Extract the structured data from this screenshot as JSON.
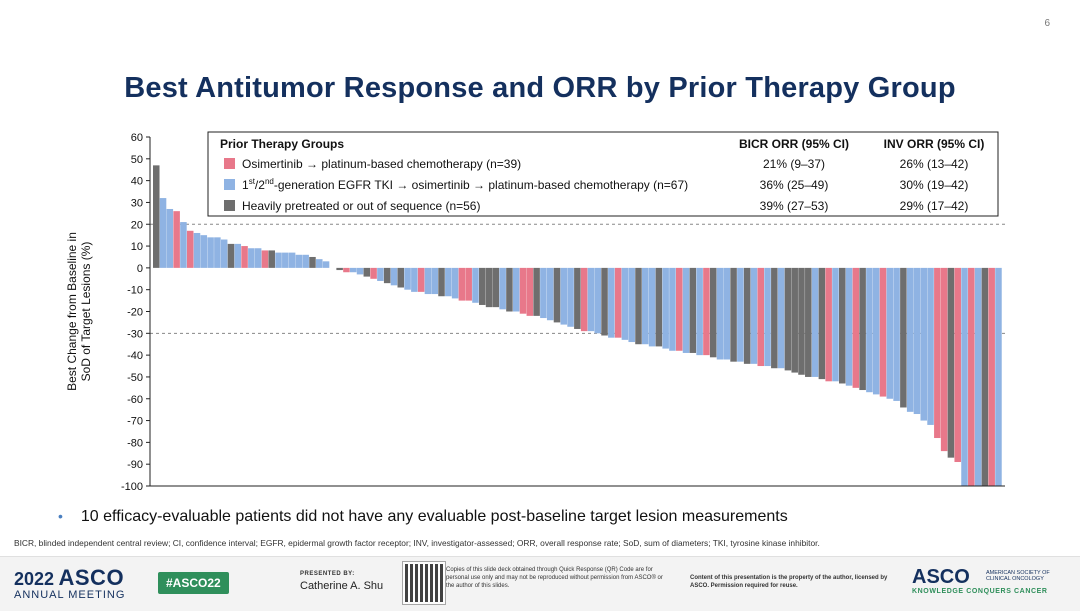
{
  "slide": {
    "page_number": "6",
    "title": "Best Antitumor Response and ORR by Prior Therapy Group",
    "bullet": "10 efficacy-evaluable patients did not have any evaluable post-baseline target lesion measurements",
    "footnote": "BICR, blinded independent central review; CI, confidence interval; EGFR, epidermal growth factor receptor; INV, investigator-assessed; ORR, overall response rate; SoD, sum of diameters; TKI, tyrosine kinase inhibitor."
  },
  "footer": {
    "meeting_year": "2022",
    "meeting_brand": "ASCO",
    "meeting_sub": "ANNUAL MEETING",
    "hashtag": "#ASCO22",
    "presented_by_label": "PRESENTED BY:",
    "presenter": "Catherine A. Shu",
    "qr_note": "Copies of this slide deck obtained through Quick Response (QR) Code are for personal use only and may not be reproduced without permission from ASCO® or the author of this slides.",
    "copyright": "Content of this presentation is the property of the author, licensed by ASCO. Permission required for reuse.",
    "logo_text": "ASCO",
    "logo_society": "AMERICAN SOCIETY OF CLINICAL ONCOLOGY",
    "logo_tagline": "KNOWLEDGE CONQUERS CANCER"
  },
  "chart_data": {
    "type": "bar",
    "ylabel_line1": "Best Change from Baseline in",
    "ylabel_line2": "SoD of Target Lesions (%)",
    "ylim": [
      -100,
      60
    ],
    "yticks": [
      60,
      50,
      40,
      30,
      20,
      10,
      0,
      -10,
      -20,
      -30,
      -40,
      -50,
      -60,
      -70,
      -80,
      -90,
      -100
    ],
    "reference_lines": [
      20,
      -30
    ],
    "colors": {
      "pink": "#e8788a",
      "blue": "#8fb3e3",
      "gray": "#6e6e6e"
    },
    "legend": {
      "header": "Prior Therapy Groups",
      "col_bicr": "BICR ORR (95% CI)",
      "col_inv": "INV ORR (95% CI)",
      "rows": [
        {
          "key": "pink",
          "label": "Osimertinib → platinum-based chemotherapy (n=39)",
          "bicr": "21% (9–37)",
          "inv": "26% (13–42)"
        },
        {
          "key": "blue",
          "label_main": "1",
          "label_sup1": "st",
          "label_mid": "/2",
          "label_sup2": "nd",
          "label_rest": "-generation EGFR TKI → osimertinib → platinum-based chemotherapy (n=67)",
          "bicr": "36% (25–49)",
          "inv": "30% (19–42)"
        },
        {
          "key": "gray",
          "label": "Heavily pretreated or out of sequence (n=56)",
          "bicr": "39% (27–53)",
          "inv": "29% (17–42)"
        }
      ]
    },
    "bars": [
      {
        "v": 47,
        "g": "gray"
      },
      {
        "v": 32,
        "g": "blue"
      },
      {
        "v": 27,
        "g": "blue"
      },
      {
        "v": 26,
        "g": "pink"
      },
      {
        "v": 21,
        "g": "blue"
      },
      {
        "v": 17,
        "g": "pink"
      },
      {
        "v": 16,
        "g": "blue"
      },
      {
        "v": 15,
        "g": "blue"
      },
      {
        "v": 14,
        "g": "blue"
      },
      {
        "v": 14,
        "g": "blue"
      },
      {
        "v": 13,
        "g": "blue"
      },
      {
        "v": 11,
        "g": "gray"
      },
      {
        "v": 11,
        "g": "blue"
      },
      {
        "v": 10,
        "g": "pink"
      },
      {
        "v": 9,
        "g": "blue"
      },
      {
        "v": 9,
        "g": "blue"
      },
      {
        "v": 8,
        "g": "pink"
      },
      {
        "v": 8,
        "g": "gray"
      },
      {
        "v": 7,
        "g": "blue"
      },
      {
        "v": 7,
        "g": "blue"
      },
      {
        "v": 7,
        "g": "blue"
      },
      {
        "v": 6,
        "g": "blue"
      },
      {
        "v": 6,
        "g": "blue"
      },
      {
        "v": 5,
        "g": "gray"
      },
      {
        "v": 4,
        "g": "blue"
      },
      {
        "v": 3,
        "g": "blue"
      },
      {
        "v": 0,
        "g": "blue"
      },
      {
        "v": -1,
        "g": "gray"
      },
      {
        "v": -2,
        "g": "pink"
      },
      {
        "v": -2,
        "g": "blue"
      },
      {
        "v": -3,
        "g": "blue"
      },
      {
        "v": -4,
        "g": "gray"
      },
      {
        "v": -5,
        "g": "pink"
      },
      {
        "v": -6,
        "g": "blue"
      },
      {
        "v": -7,
        "g": "gray"
      },
      {
        "v": -8,
        "g": "blue"
      },
      {
        "v": -9,
        "g": "gray"
      },
      {
        "v": -10,
        "g": "blue"
      },
      {
        "v": -11,
        "g": "blue"
      },
      {
        "v": -11,
        "g": "pink"
      },
      {
        "v": -12,
        "g": "blue"
      },
      {
        "v": -12,
        "g": "blue"
      },
      {
        "v": -13,
        "g": "gray"
      },
      {
        "v": -13,
        "g": "blue"
      },
      {
        "v": -14,
        "g": "blue"
      },
      {
        "v": -15,
        "g": "pink"
      },
      {
        "v": -15,
        "g": "pink"
      },
      {
        "v": -16,
        "g": "blue"
      },
      {
        "v": -17,
        "g": "gray"
      },
      {
        "v": -18,
        "g": "gray"
      },
      {
        "v": -18,
        "g": "gray"
      },
      {
        "v": -19,
        "g": "blue"
      },
      {
        "v": -20,
        "g": "gray"
      },
      {
        "v": -20,
        "g": "blue"
      },
      {
        "v": -21,
        "g": "pink"
      },
      {
        "v": -22,
        "g": "pink"
      },
      {
        "v": -22,
        "g": "gray"
      },
      {
        "v": -23,
        "g": "blue"
      },
      {
        "v": -24,
        "g": "blue"
      },
      {
        "v": -25,
        "g": "gray"
      },
      {
        "v": -26,
        "g": "blue"
      },
      {
        "v": -27,
        "g": "blue"
      },
      {
        "v": -28,
        "g": "gray"
      },
      {
        "v": -29,
        "g": "pink"
      },
      {
        "v": -29,
        "g": "blue"
      },
      {
        "v": -30,
        "g": "blue"
      },
      {
        "v": -31,
        "g": "gray"
      },
      {
        "v": -32,
        "g": "blue"
      },
      {
        "v": -32,
        "g": "pink"
      },
      {
        "v": -33,
        "g": "blue"
      },
      {
        "v": -34,
        "g": "blue"
      },
      {
        "v": -35,
        "g": "gray"
      },
      {
        "v": -35,
        "g": "blue"
      },
      {
        "v": -36,
        "g": "blue"
      },
      {
        "v": -36,
        "g": "gray"
      },
      {
        "v": -37,
        "g": "blue"
      },
      {
        "v": -38,
        "g": "blue"
      },
      {
        "v": -38,
        "g": "pink"
      },
      {
        "v": -39,
        "g": "blue"
      },
      {
        "v": -39,
        "g": "gray"
      },
      {
        "v": -40,
        "g": "blue"
      },
      {
        "v": -40,
        "g": "pink"
      },
      {
        "v": -41,
        "g": "gray"
      },
      {
        "v": -42,
        "g": "blue"
      },
      {
        "v": -42,
        "g": "blue"
      },
      {
        "v": -43,
        "g": "gray"
      },
      {
        "v": -43,
        "g": "blue"
      },
      {
        "v": -44,
        "g": "gray"
      },
      {
        "v": -44,
        "g": "blue"
      },
      {
        "v": -45,
        "g": "pink"
      },
      {
        "v": -45,
        "g": "blue"
      },
      {
        "v": -46,
        "g": "gray"
      },
      {
        "v": -46,
        "g": "blue"
      },
      {
        "v": -47,
        "g": "gray"
      },
      {
        "v": -48,
        "g": "gray"
      },
      {
        "v": -49,
        "g": "gray"
      },
      {
        "v": -50,
        "g": "gray"
      },
      {
        "v": -50,
        "g": "blue"
      },
      {
        "v": -51,
        "g": "gray"
      },
      {
        "v": -52,
        "g": "pink"
      },
      {
        "v": -52,
        "g": "blue"
      },
      {
        "v": -53,
        "g": "gray"
      },
      {
        "v": -54,
        "g": "blue"
      },
      {
        "v": -55,
        "g": "pink"
      },
      {
        "v": -56,
        "g": "gray"
      },
      {
        "v": -57,
        "g": "blue"
      },
      {
        "v": -58,
        "g": "blue"
      },
      {
        "v": -59,
        "g": "pink"
      },
      {
        "v": -60,
        "g": "blue"
      },
      {
        "v": -61,
        "g": "blue"
      },
      {
        "v": -64,
        "g": "gray"
      },
      {
        "v": -66,
        "g": "blue"
      },
      {
        "v": -67,
        "g": "blue"
      },
      {
        "v": -70,
        "g": "blue"
      },
      {
        "v": -72,
        "g": "blue"
      },
      {
        "v": -78,
        "g": "pink"
      },
      {
        "v": -84,
        "g": "pink"
      },
      {
        "v": -87,
        "g": "gray"
      },
      {
        "v": -89,
        "g": "pink"
      },
      {
        "v": -100,
        "g": "blue"
      },
      {
        "v": -100,
        "g": "pink"
      },
      {
        "v": -100,
        "g": "blue"
      },
      {
        "v": -100,
        "g": "gray"
      },
      {
        "v": -100,
        "g": "pink"
      },
      {
        "v": -100,
        "g": "blue"
      }
    ]
  }
}
